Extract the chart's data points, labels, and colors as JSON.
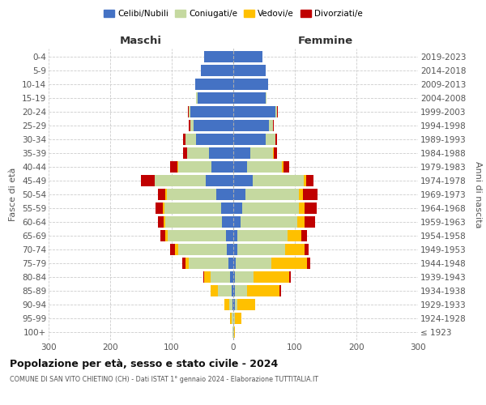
{
  "age_groups": [
    "100+",
    "95-99",
    "90-94",
    "85-89",
    "80-84",
    "75-79",
    "70-74",
    "65-69",
    "60-64",
    "55-59",
    "50-54",
    "45-49",
    "40-44",
    "35-39",
    "30-34",
    "25-29",
    "20-24",
    "15-19",
    "10-14",
    "5-9",
    "0-4"
  ],
  "birth_years": [
    "≤ 1923",
    "1924-1928",
    "1929-1933",
    "1934-1938",
    "1939-1943",
    "1944-1948",
    "1949-1953",
    "1954-1958",
    "1959-1963",
    "1964-1968",
    "1969-1973",
    "1974-1978",
    "1979-1983",
    "1984-1988",
    "1989-1993",
    "1994-1998",
    "1999-2003",
    "2004-2008",
    "2009-2013",
    "2014-2018",
    "2019-2023"
  ],
  "maschi": {
    "celibi": [
      0,
      0,
      1,
      3,
      5,
      8,
      10,
      12,
      18,
      20,
      28,
      45,
      35,
      40,
      60,
      65,
      70,
      58,
      62,
      52,
      48
    ],
    "coniugati": [
      1,
      3,
      6,
      22,
      32,
      65,
      80,
      95,
      92,
      92,
      80,
      82,
      55,
      35,
      18,
      5,
      3,
      2,
      0,
      0,
      0
    ],
    "vedovi": [
      0,
      2,
      8,
      12,
      10,
      5,
      5,
      3,
      3,
      2,
      2,
      1,
      1,
      0,
      0,
      0,
      0,
      0,
      0,
      0,
      0
    ],
    "divorziati": [
      0,
      0,
      0,
      0,
      2,
      5,
      8,
      8,
      10,
      12,
      12,
      22,
      12,
      6,
      4,
      2,
      1,
      0,
      0,
      0,
      0
    ]
  },
  "femmine": {
    "nubili": [
      0,
      0,
      2,
      3,
      3,
      4,
      6,
      6,
      12,
      14,
      20,
      32,
      22,
      28,
      52,
      58,
      68,
      52,
      57,
      52,
      47
    ],
    "coniugate": [
      1,
      3,
      5,
      20,
      30,
      58,
      78,
      82,
      92,
      92,
      87,
      82,
      57,
      37,
      16,
      6,
      3,
      2,
      0,
      0,
      0
    ],
    "vedove": [
      2,
      10,
      28,
      52,
      58,
      58,
      32,
      22,
      12,
      10,
      6,
      4,
      2,
      1,
      1,
      0,
      0,
      0,
      0,
      0,
      0
    ],
    "divorziate": [
      0,
      0,
      0,
      2,
      3,
      5,
      6,
      10,
      17,
      20,
      24,
      12,
      10,
      5,
      2,
      2,
      1,
      0,
      0,
      0,
      0
    ]
  },
  "colors": {
    "celibi": "#4472c4",
    "coniugati": "#c5d9a0",
    "vedovi": "#ffc000",
    "divorziati": "#c00000"
  },
  "title": "Popolazione per età, sesso e stato civile - 2024",
  "subtitle": "COMUNE DI SAN VITO CHIETINO (CH) - Dati ISTAT 1° gennaio 2024 - Elaborazione TUTTITALIA.IT",
  "xlabel_left": "Maschi",
  "xlabel_right": "Femmine",
  "ylabel_left": "Fasce di età",
  "ylabel_right": "Anni di nascita",
  "xlim": 300,
  "bg_color": "#ffffff",
  "grid_color": "#cccccc"
}
